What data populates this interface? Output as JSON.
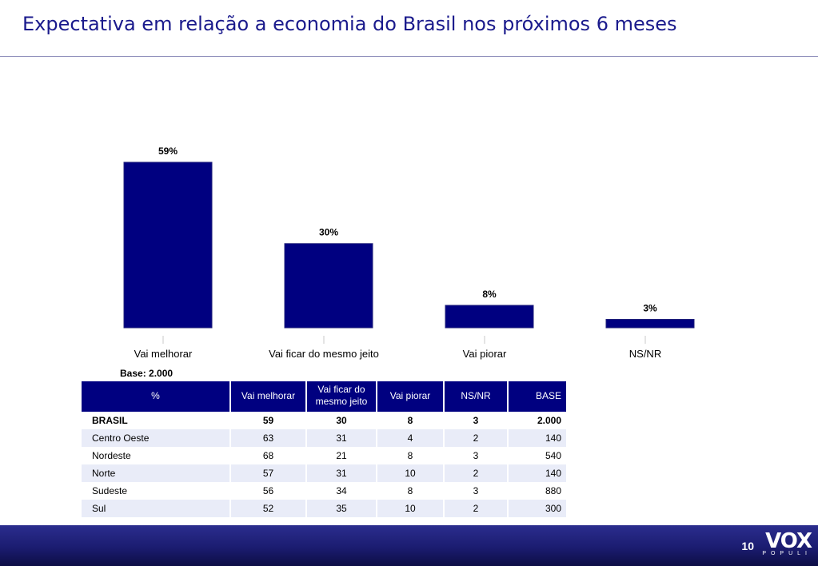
{
  "title": "Expectativa em relação a economia do Brasil nos próximos 6 meses",
  "chart_data": {
    "type": "bar",
    "categories": [
      "Vai melhorar",
      "Vai ficar do mesmo jeito",
      "Vai piorar",
      "NS/NR"
    ],
    "values": [
      59,
      30,
      8,
      3
    ],
    "value_labels": [
      "59%",
      "30%",
      "8%",
      "3%"
    ],
    "ylim": [
      0,
      59
    ],
    "grid": false,
    "bar_color": "#000080"
  },
  "base_note": "Base: 2.000",
  "table": {
    "headers": [
      "%",
      "Vai melhorar",
      "Vai ficar do mesmo jeito",
      "Vai piorar",
      "NS/NR",
      "BASE"
    ],
    "rows": [
      [
        "BRASIL",
        "59",
        "30",
        "8",
        "3",
        "2.000"
      ],
      [
        "Centro Oeste",
        "63",
        "31",
        "4",
        "2",
        "140"
      ],
      [
        "Nordeste",
        "68",
        "21",
        "8",
        "3",
        "540"
      ],
      [
        "Norte",
        "57",
        "31",
        "10",
        "2",
        "140"
      ],
      [
        "Sudeste",
        "56",
        "34",
        "8",
        "3",
        "880"
      ],
      [
        "Sul",
        "52",
        "35",
        "10",
        "2",
        "300"
      ]
    ]
  },
  "footer": {
    "page_number": "10",
    "logo_main": "VOX",
    "logo_sub": "POPULI"
  }
}
